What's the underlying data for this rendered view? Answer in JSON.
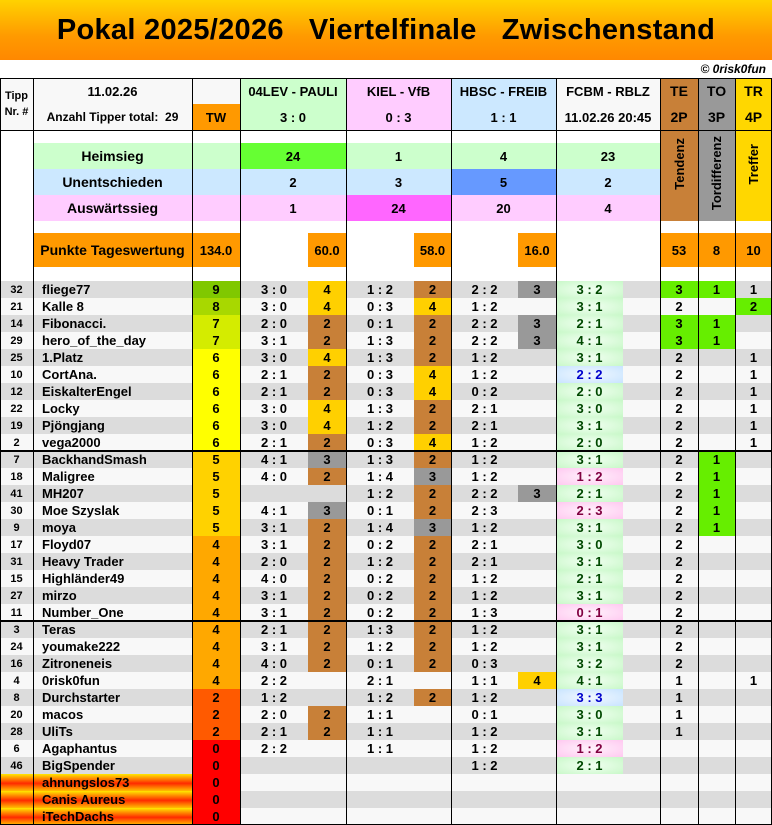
{
  "title": "Pokal 2025/2026   Viertelfinale   Zwischenstand",
  "copyright": "© 0risk0fun",
  "header": {
    "tipp_nr": [
      "Tipp",
      "Nr. #"
    ],
    "date": "11.02.26",
    "tipper_total": "Anzahl Tipper total:  29",
    "tw": "TW",
    "games": [
      {
        "name": "04LEV - PAULI",
        "score": "3 : 0",
        "color": "#ccffcc"
      },
      {
        "name": "KIEL - VfB",
        "score": "0 : 3",
        "color": "#ffccff"
      },
      {
        "name": "HBSC - FREIB",
        "score": "1 : 1",
        "color": "#cce8ff"
      },
      {
        "name": "FCBM - RBLZ",
        "score": "11.02.26 20:45",
        "color": "#f8f8f8"
      }
    ],
    "te": {
      "label": "TE",
      "points": "2P",
      "long": "Tendenz",
      "color": "#c88038"
    },
    "to": {
      "label": "TO",
      "points": "3P",
      "long": "Tordifferenz",
      "color": "#999999"
    },
    "tr": {
      "label": "TR",
      "points": "4P",
      "long": "Treffer",
      "color": "#ffd700"
    }
  },
  "stats": {
    "heimsieg": {
      "label": "Heimsieg",
      "values": [
        "24",
        "1",
        "4",
        "23"
      ]
    },
    "unentschieden": {
      "label": "Unentschieden",
      "values": [
        "2",
        "3",
        "5",
        "2"
      ]
    },
    "auswaertssieg": {
      "label": "Auswärtssieg",
      "values": [
        "1",
        "24",
        "20",
        "4"
      ]
    },
    "punkte": {
      "label": "Punkte Tageswertung",
      "tw": "134.0",
      "games": [
        "60.0",
        "58.0",
        "16.0"
      ],
      "te": "53",
      "to": "8",
      "tr": "10"
    }
  },
  "rows": [
    {
      "nr": "32",
      "name": "fliege77",
      "tw": "9",
      "g1": [
        "3 : 0",
        "4"
      ],
      "g2": [
        "1 : 2",
        "2"
      ],
      "g3": [
        "2 : 2",
        "3"
      ],
      "g4": "3 : 2",
      "te": "3",
      "to": "1",
      "tr": "1"
    },
    {
      "nr": "21",
      "name": "Kalle 8",
      "tw": "8",
      "g1": [
        "3 : 0",
        "4"
      ],
      "g2": [
        "0 : 3",
        "4"
      ],
      "g3": [
        "1 : 2",
        ""
      ],
      "g4": "3 : 1",
      "te": "2",
      "to": "",
      "tr": "2"
    },
    {
      "nr": "14",
      "name": "Fibonacci.",
      "tw": "7",
      "g1": [
        "2 : 0",
        "2"
      ],
      "g2": [
        "0 : 1",
        "2"
      ],
      "g3": [
        "2 : 2",
        "3"
      ],
      "g4": "2 : 1",
      "te": "3",
      "to": "1",
      "tr": ""
    },
    {
      "nr": "29",
      "name": "hero_of_the_day",
      "tw": "7",
      "g1": [
        "3 : 1",
        "2"
      ],
      "g2": [
        "1 : 3",
        "2"
      ],
      "g3": [
        "2 : 2",
        "3"
      ],
      "g4": "4 : 1",
      "te": "3",
      "to": "1",
      "tr": ""
    },
    {
      "nr": "25",
      "name": "1.Platz",
      "tw": "6",
      "g1": [
        "3 : 0",
        "4"
      ],
      "g2": [
        "1 : 3",
        "2"
      ],
      "g3": [
        "1 : 2",
        ""
      ],
      "g4": "3 : 1",
      "te": "2",
      "to": "",
      "tr": "1"
    },
    {
      "nr": "10",
      "name": "CortAna.",
      "tw": "6",
      "g1": [
        "2 : 1",
        "2"
      ],
      "g2": [
        "0 : 3",
        "4"
      ],
      "g3": [
        "1 : 2",
        ""
      ],
      "g4": "2 : 2",
      "te": "2",
      "to": "",
      "tr": "1"
    },
    {
      "nr": "12",
      "name": "EiskalterEngel",
      "tw": "6",
      "g1": [
        "2 : 1",
        "2"
      ],
      "g2": [
        "0 : 3",
        "4"
      ],
      "g3": [
        "0 : 2",
        ""
      ],
      "g4": "2 : 0",
      "te": "2",
      "to": "",
      "tr": "1"
    },
    {
      "nr": "22",
      "name": "Locky",
      "tw": "6",
      "g1": [
        "3 : 0",
        "4"
      ],
      "g2": [
        "1 : 3",
        "2"
      ],
      "g3": [
        "2 : 1",
        ""
      ],
      "g4": "3 : 0",
      "te": "2",
      "to": "",
      "tr": "1"
    },
    {
      "nr": "19",
      "name": "Pjöngjang",
      "tw": "6",
      "g1": [
        "3 : 0",
        "4"
      ],
      "g2": [
        "1 : 2",
        "2"
      ],
      "g3": [
        "2 : 1",
        ""
      ],
      "g4": "3 : 1",
      "te": "2",
      "to": "",
      "tr": "1"
    },
    {
      "nr": "2",
      "name": "vega2000",
      "tw": "6",
      "g1": [
        "2 : 1",
        "2"
      ],
      "g2": [
        "0 : 3",
        "4"
      ],
      "g3": [
        "1 : 2",
        ""
      ],
      "g4": "2 : 0",
      "te": "2",
      "to": "",
      "tr": "1"
    },
    {
      "nr": "7",
      "name": "BackhandSmash",
      "tw": "5",
      "g1": [
        "4 : 1",
        "3"
      ],
      "g2": [
        "1 : 3",
        "2"
      ],
      "g3": [
        "1 : 2",
        ""
      ],
      "g4": "3 : 1",
      "te": "2",
      "to": "1",
      "tr": ""
    },
    {
      "nr": "18",
      "name": "Maligree",
      "tw": "5",
      "g1": [
        "4 : 0",
        "2"
      ],
      "g2": [
        "1 : 4",
        "3"
      ],
      "g3": [
        "1 : 2",
        ""
      ],
      "g4": "1 : 2",
      "te": "2",
      "to": "1",
      "tr": ""
    },
    {
      "nr": "41",
      "name": "MH207",
      "tw": "5",
      "g1": [
        "",
        ""
      ],
      "g2": [
        "1 : 2",
        "2"
      ],
      "g3": [
        "2 : 2",
        "3"
      ],
      "g4": "2 : 1",
      "te": "2",
      "to": "1",
      "tr": ""
    },
    {
      "nr": "30",
      "name": "Moe Szyslak",
      "tw": "5",
      "g1": [
        "4 : 1",
        "3"
      ],
      "g2": [
        "0 : 1",
        "2"
      ],
      "g3": [
        "2 : 3",
        ""
      ],
      "g4": "2 : 3",
      "te": "2",
      "to": "1",
      "tr": ""
    },
    {
      "nr": "9",
      "name": "moya",
      "tw": "5",
      "g1": [
        "3 : 1",
        "2"
      ],
      "g2": [
        "1 : 4",
        "3"
      ],
      "g3": [
        "1 : 2",
        ""
      ],
      "g4": "3 : 1",
      "te": "2",
      "to": "1",
      "tr": ""
    },
    {
      "nr": "17",
      "name": "Floyd07",
      "tw": "4",
      "g1": [
        "3 : 1",
        "2"
      ],
      "g2": [
        "0 : 2",
        "2"
      ],
      "g3": [
        "2 : 1",
        ""
      ],
      "g4": "3 : 0",
      "te": "2",
      "to": "",
      "tr": ""
    },
    {
      "nr": "31",
      "name": "Heavy Trader",
      "tw": "4",
      "g1": [
        "2 : 0",
        "2"
      ],
      "g2": [
        "1 : 2",
        "2"
      ],
      "g3": [
        "2 : 1",
        ""
      ],
      "g4": "3 : 1",
      "te": "2",
      "to": "",
      "tr": ""
    },
    {
      "nr": "15",
      "name": "Highländer49",
      "tw": "4",
      "g1": [
        "4 : 0",
        "2"
      ],
      "g2": [
        "0 : 2",
        "2"
      ],
      "g3": [
        "1 : 2",
        ""
      ],
      "g4": "2 : 1",
      "te": "2",
      "to": "",
      "tr": ""
    },
    {
      "nr": "27",
      "name": "mirzo",
      "tw": "4",
      "g1": [
        "3 : 1",
        "2"
      ],
      "g2": [
        "0 : 2",
        "2"
      ],
      "g3": [
        "1 : 2",
        ""
      ],
      "g4": "3 : 1",
      "te": "2",
      "to": "",
      "tr": ""
    },
    {
      "nr": "11",
      "name": "Number_One",
      "tw": "4",
      "g1": [
        "3 : 1",
        "2"
      ],
      "g2": [
        "0 : 2",
        "2"
      ],
      "g3": [
        "1 : 3",
        ""
      ],
      "g4": "0 : 1",
      "te": "2",
      "to": "",
      "tr": ""
    },
    {
      "nr": "3",
      "name": "Teras",
      "tw": "4",
      "g1": [
        "2 : 1",
        "2"
      ],
      "g2": [
        "1 : 3",
        "2"
      ],
      "g3": [
        "1 : 2",
        ""
      ],
      "g4": "3 : 1",
      "te": "2",
      "to": "",
      "tr": ""
    },
    {
      "nr": "24",
      "name": "youmake222",
      "tw": "4",
      "g1": [
        "3 : 1",
        "2"
      ],
      "g2": [
        "1 : 2",
        "2"
      ],
      "g3": [
        "1 : 2",
        ""
      ],
      "g4": "3 : 1",
      "te": "2",
      "to": "",
      "tr": ""
    },
    {
      "nr": "16",
      "name": "Zitroneneis",
      "tw": "4",
      "g1": [
        "4 : 0",
        "2"
      ],
      "g2": [
        "0 : 1",
        "2"
      ],
      "g3": [
        "0 : 3",
        ""
      ],
      "g4": "3 : 2",
      "te": "2",
      "to": "",
      "tr": ""
    },
    {
      "nr": "4",
      "name": "0risk0fun",
      "tw": "4",
      "g1": [
        "2 : 2",
        ""
      ],
      "g2": [
        "2 : 1",
        ""
      ],
      "g3": [
        "1 : 1",
        "4"
      ],
      "g4": "4 : 1",
      "te": "1",
      "to": "",
      "tr": "1"
    },
    {
      "nr": "8",
      "name": "Durchstarter",
      "tw": "2",
      "g1": [
        "1 : 2",
        ""
      ],
      "g2": [
        "1 : 2",
        "2"
      ],
      "g3": [
        "1 : 2",
        ""
      ],
      "g4": "3 : 3",
      "te": "1",
      "to": "",
      "tr": ""
    },
    {
      "nr": "20",
      "name": "macos",
      "tw": "2",
      "g1": [
        "2 : 0",
        "2"
      ],
      "g2": [
        "1 : 1",
        ""
      ],
      "g3": [
        "0 : 1",
        ""
      ],
      "g4": "3 : 0",
      "te": "1",
      "to": "",
      "tr": ""
    },
    {
      "nr": "28",
      "name": "UliTs",
      "tw": "2",
      "g1": [
        "2 : 1",
        "2"
      ],
      "g2": [
        "1 : 1",
        ""
      ],
      "g3": [
        "1 : 2",
        ""
      ],
      "g4": "3 : 1",
      "te": "1",
      "to": "",
      "tr": ""
    },
    {
      "nr": "6",
      "name": "Agaphantus",
      "tw": "0",
      "g1": [
        "2 : 2",
        ""
      ],
      "g2": [
        "1 : 1",
        ""
      ],
      "g3": [
        "1 : 2",
        ""
      ],
      "g4": "1 : 2",
      "te": "",
      "to": "",
      "tr": ""
    },
    {
      "nr": "46",
      "name": "BigSpender",
      "tw": "0",
      "g1": [
        "",
        ""
      ],
      "g2": [
        "",
        ""
      ],
      "g3": [
        "1 : 2",
        ""
      ],
      "g4": "2 : 1",
      "te": "",
      "to": "",
      "tr": ""
    },
    {
      "nr": "",
      "name": "ahnungslos73",
      "tw": "0",
      "g1": [
        "",
        ""
      ],
      "g2": [
        "",
        ""
      ],
      "g3": [
        "",
        ""
      ],
      "g4": "",
      "te": "",
      "to": "",
      "tr": ""
    },
    {
      "nr": "",
      "name": "Canis Aureus",
      "tw": "0",
      "g1": [
        "",
        ""
      ],
      "g2": [
        "",
        ""
      ],
      "g3": [
        "",
        ""
      ],
      "g4": "",
      "te": "",
      "to": "",
      "tr": ""
    },
    {
      "nr": "",
      "name": "iTechDachs",
      "tw": "0",
      "g1": [
        "",
        ""
      ],
      "g2": [
        "",
        ""
      ],
      "g3": [
        "",
        ""
      ],
      "g4": "",
      "te": "",
      "to": "",
      "tr": ""
    }
  ],
  "colors": {
    "tw": {
      "9": "#80c800",
      "8": "#a8d800",
      "7": "#d4ec00",
      "6": "#ffff00",
      "5": "#ffd200",
      "4": "#ffa800",
      "2": "#ff5a00",
      "0": "#ff0000"
    },
    "points": {
      "4": "#ffd000",
      "3": "#999999",
      "2": "#c88038"
    },
    "hit_green": "#66ee00",
    "punkte": "#ff9900",
    "home_win": "#66ff33",
    "draw": "#6699ff",
    "away_win": "#ff66ff"
  }
}
